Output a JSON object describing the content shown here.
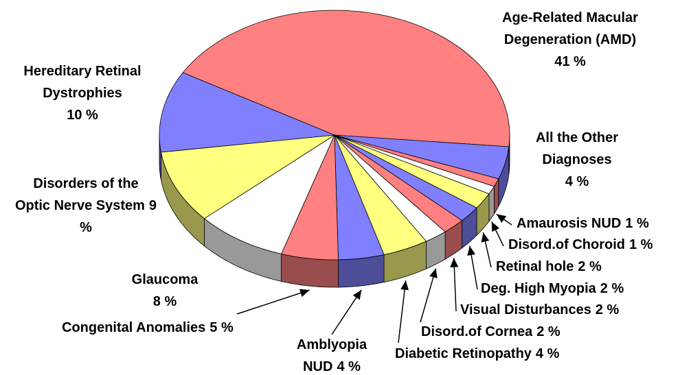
{
  "chart_data": {
    "type": "pie",
    "categories": [
      "Age-Related Macular Degeneration (AMD)",
      "All the Other Diagnoses",
      "Amaurosis NUD",
      "Disord.of Choroid",
      "Retinal hole",
      "Deg. High Myopia",
      "Visual Disturbances",
      "Disord.of Cornea",
      "Diabetic Retinopathy",
      "Amblyopia NUD",
      "Congenital Anomalies",
      "Glaucoma",
      "Disorders of the Optic Nerve System",
      "Hereditary Retinal Dystrophies"
    ],
    "values": [
      41,
      4,
      1,
      1,
      2,
      2,
      2,
      2,
      4,
      4,
      5,
      8,
      9,
      10
    ],
    "value_labels": [
      "41 %",
      "4 %",
      "1 %",
      "1 %",
      "2 %",
      "2 %",
      "2 %",
      "2 %",
      "4 %",
      "4 %",
      "5 %",
      "8 %",
      "9 %",
      "10 %"
    ],
    "colors": [
      "#ff8080",
      "#8080ff",
      "#ff8080",
      "#ffffff",
      "#ffff80",
      "#8080ff",
      "#ff8080",
      "#ffffff",
      "#ffff80",
      "#8080ff",
      "#ff8080",
      "#ffffff",
      "#ffff80",
      "#8080ff"
    ]
  }
}
